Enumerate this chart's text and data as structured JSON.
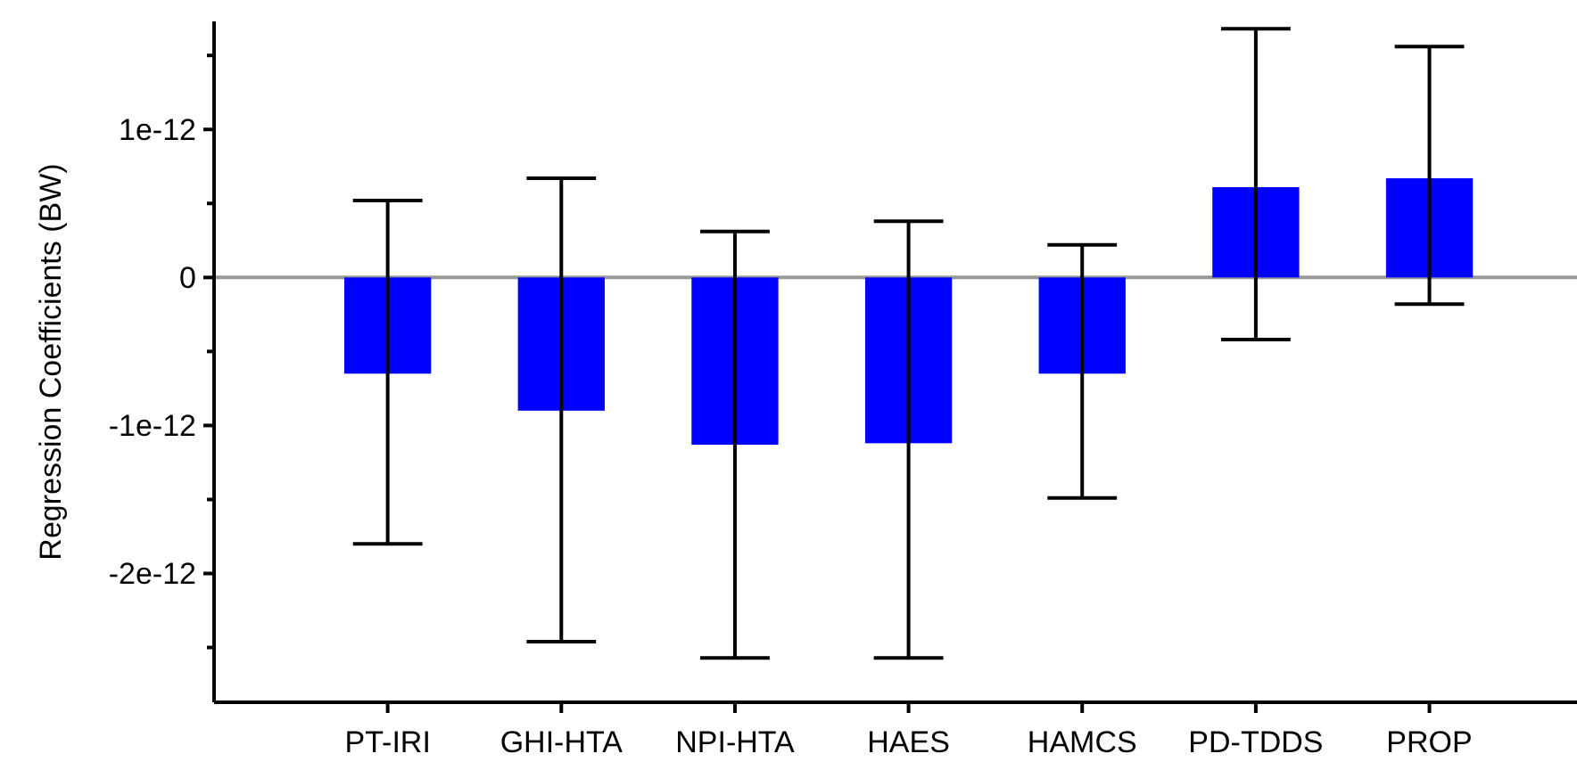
{
  "chart_data": {
    "type": "bar",
    "ylabel": "Regression Coefficients (BW)",
    "categories": [
      "PT-IRI",
      "GHI-HTA",
      "NPI-HTA",
      "HAES",
      "HAMCS",
      "PD-TDDS",
      "PROP"
    ],
    "values": [
      -6.5e-13,
      -9e-13,
      -1.13e-12,
      -1.12e-12,
      -6.5e-13,
      6.1e-13,
      6.7e-13
    ],
    "errors": [
      [
        -1.8e-12,
        5.2e-13
      ],
      [
        -2.46e-12,
        6.7e-13
      ],
      [
        -2.57e-12,
        3.1e-13
      ],
      [
        -2.57e-12,
        3.8e-13
      ],
      [
        -1.49e-12,
        2.2e-13
      ],
      [
        -4.2e-13,
        1.68e-12
      ],
      [
        -1.8e-13,
        1.56e-12
      ]
    ],
    "color": "#0000ff",
    "ylim": [
      -2.87e-12,
      1.73e-12
    ],
    "yticks": [
      {
        "value": -2.5e-12,
        "label": null
      },
      {
        "value": -2e-12,
        "label": "-2e-12"
      },
      {
        "value": -1.5e-12,
        "label": null
      },
      {
        "value": -1e-12,
        "label": "-1e-12"
      },
      {
        "value": -5e-13,
        "label": null
      },
      {
        "value": 0,
        "label": "0"
      },
      {
        "value": 5e-13,
        "label": null
      },
      {
        "value": 1e-12,
        "label": "1e-12"
      },
      {
        "value": 1.5e-12,
        "label": null
      }
    ],
    "ref_lines": [
      {
        "axis": "y",
        "value": 0,
        "color": "#999999"
      }
    ],
    "grid": false
  }
}
